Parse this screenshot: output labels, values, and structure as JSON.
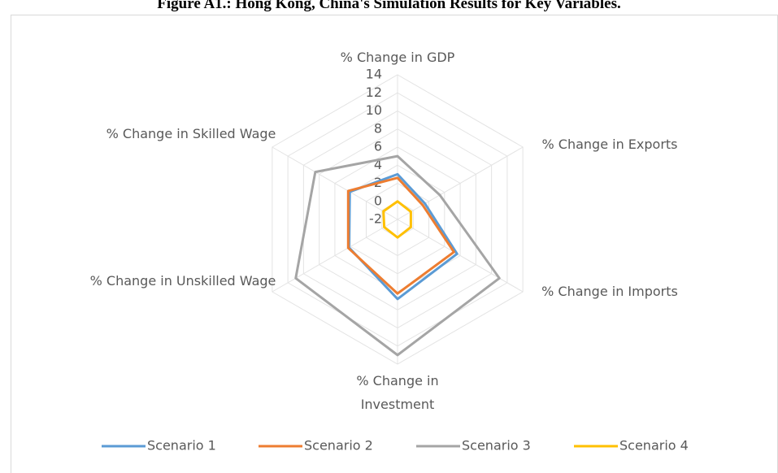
{
  "chart_data": {
    "type": "radar",
    "title": "Figure A1.: Hong Kong, China's Simulation Results for Key Variables.",
    "categories": [
      "% Change in GDP",
      "% Change in Exports",
      "% Change in Imports",
      "% Change in Investment",
      "% Change in Unskilled Wage",
      "% Change in Skilled Wage"
    ],
    "series": [
      {
        "name": "Scenario 1",
        "color": "#5b9bd5",
        "values": [
          3,
          1.5,
          5.6,
          6.8,
          4.2,
          4.1
        ]
      },
      {
        "name": "Scenario 2",
        "color": "#ed7d31",
        "values": [
          2.6,
          1.2,
          5.2,
          6.2,
          4.3,
          4.3
        ]
      },
      {
        "name": "Scenario 3",
        "color": "#a5a5a5",
        "values": [
          5,
          3.4,
          11,
          13,
          11,
          8.5
        ]
      },
      {
        "name": "Scenario 4",
        "color": "#ffc000",
        "values": [
          0,
          -0.3,
          -0.3,
          0,
          -0.3,
          -0.2
        ]
      }
    ],
    "rlim": [
      -2,
      14
    ],
    "rticks": [
      -2,
      0,
      2,
      4,
      6,
      8,
      10,
      12,
      14
    ],
    "grid": true,
    "legend": "bottom"
  }
}
